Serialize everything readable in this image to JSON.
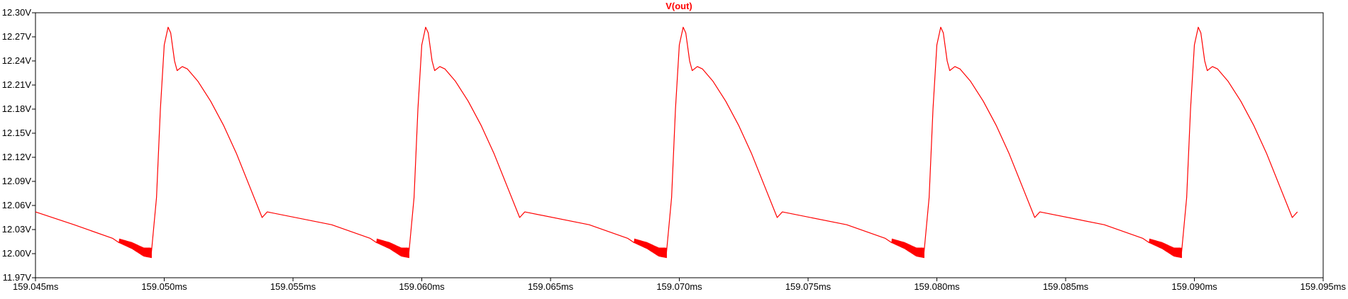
{
  "chart_data": {
    "type": "line",
    "title": "V(out)",
    "xlabel": "",
    "ylabel": "",
    "x_unit": "ms",
    "y_unit": "V",
    "xlim": [
      159.045,
      159.095
    ],
    "ylim": [
      11.97,
      12.3
    ],
    "x_ticks": [
      "159.045ms",
      "159.050ms",
      "159.055ms",
      "159.060ms",
      "159.065ms",
      "159.070ms",
      "159.075ms",
      "159.080ms",
      "159.085ms",
      "159.090ms",
      "159.095ms"
    ],
    "y_ticks": [
      "12.30V",
      "12.27V",
      "12.24V",
      "12.21V",
      "12.18V",
      "12.15V",
      "12.12V",
      "12.09V",
      "12.06V",
      "12.03V",
      "12.00V",
      "11.97V"
    ],
    "grid": false,
    "legend": "none",
    "series": [
      {
        "color": "#ff0000",
        "period_ms": 0.01,
        "cycle_points": [
          {
            "t": 159.045,
            "v": 12.052
          },
          {
            "t": 159.0465,
            "v": 12.036
          },
          {
            "t": 159.048,
            "v": 12.019
          },
          {
            "t": 159.04875,
            "v": 12.01
          },
          {
            "t": 159.0492,
            "v": 12.002
          },
          {
            "t": 159.0495,
            "v": 12.001
          },
          {
            "t": 159.0497,
            "v": 12.07
          },
          {
            "t": 159.04985,
            "v": 12.18
          },
          {
            "t": 159.05,
            "v": 12.26
          },
          {
            "t": 159.05015,
            "v": 12.282
          },
          {
            "t": 159.05025,
            "v": 12.275
          },
          {
            "t": 159.0504,
            "v": 12.24
          },
          {
            "t": 159.0505,
            "v": 12.228
          },
          {
            "t": 159.0507,
            "v": 12.233
          },
          {
            "t": 159.0509,
            "v": 12.23
          },
          {
            "t": 159.0513,
            "v": 12.215
          },
          {
            "t": 159.0518,
            "v": 12.19
          },
          {
            "t": 159.0523,
            "v": 12.16
          },
          {
            "t": 159.0528,
            "v": 12.125
          },
          {
            "t": 159.0533,
            "v": 12.085
          },
          {
            "t": 159.0538,
            "v": 12.045
          },
          {
            "t": 159.054,
            "v": 12.052
          }
        ],
        "ripple": {
          "start_offset_ms": 0.00325,
          "end_offset_ms": 0.0045,
          "amplitude_v": 0.006
        }
      }
    ]
  }
}
